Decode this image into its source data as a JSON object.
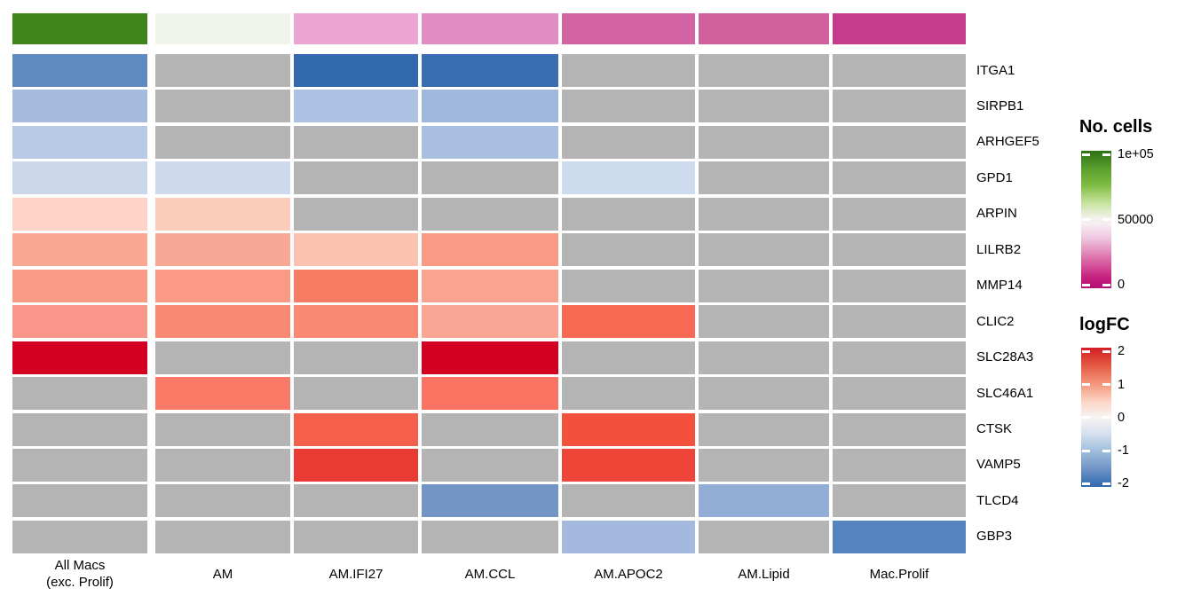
{
  "chart_data": {
    "type": "heatmap",
    "description": "Gene logFC heatmap across macrophage subsets with a 'No. cells' column annotation; gray cells are NA (not significant).",
    "columns": [
      "All Macs\n(exc. Prolif)",
      "AM",
      "AM.IFI27",
      "AM.CCL",
      "AM.APOC2",
      "AM.Lipid",
      "Mac.Prolif"
    ],
    "genes": [
      "ITGA1",
      "SIRPB1",
      "ARHGEF5",
      "GPD1",
      "ARPIN",
      "LILRB2",
      "MMP14",
      "CLIC2",
      "SLC28A3",
      "SLC46A1",
      "CTSK",
      "VAMP5",
      "TLCD4",
      "GBP3"
    ],
    "logFC": [
      [
        -1.1,
        null,
        -1.8,
        -1.7,
        null,
        null,
        null
      ],
      [
        -0.7,
        null,
        -0.6,
        -0.75,
        null,
        null,
        null
      ],
      [
        -0.55,
        null,
        null,
        -0.65,
        null,
        null,
        null
      ],
      [
        -0.4,
        -0.38,
        null,
        null,
        -0.35,
        null,
        null
      ],
      [
        0.33,
        0.4,
        null,
        null,
        null,
        null,
        null
      ],
      [
        0.75,
        0.74,
        0.5,
        0.85,
        null,
        null,
        null
      ],
      [
        0.85,
        0.86,
        1.15,
        0.78,
        null,
        null,
        null
      ],
      [
        0.9,
        1.0,
        1.0,
        0.75,
        1.3,
        null,
        null
      ],
      [
        2.2,
        null,
        null,
        2.2,
        null,
        null,
        null
      ],
      [
        null,
        1.2,
        null,
        1.25,
        null,
        null,
        null
      ],
      [
        null,
        null,
        1.4,
        null,
        1.5,
        null,
        null
      ],
      [
        null,
        null,
        1.75,
        null,
        1.55,
        null,
        null
      ],
      [
        null,
        null,
        null,
        -1.05,
        null,
        -0.8,
        null
      ],
      [
        null,
        null,
        null,
        null,
        -0.7,
        null,
        -1.2
      ]
    ],
    "cell_colors": [
      [
        "#5f8ac0",
        null,
        "#3269ae",
        "#386db1",
        null,
        null,
        null
      ],
      [
        "#a4bbde",
        null,
        "#abc2e3",
        "#9fb8dc",
        null,
        null,
        null
      ],
      [
        "#b8cbe5",
        null,
        null,
        "#a8bfe0",
        null,
        null,
        null
      ],
      [
        "#cad7eb",
        "#ced9ed",
        null,
        null,
        "#ccdcee",
        null,
        null
      ],
      [
        "#fdd3c5",
        "#fcccbb",
        null,
        null,
        null,
        null,
        null
      ],
      [
        "#faa794",
        "#faa896",
        "#fcc2b1",
        "#f99a85",
        null,
        null,
        null
      ],
      [
        "#f99b87",
        "#fa9a85",
        "#f87c63",
        "#faa390",
        null,
        null,
        null
      ],
      [
        "#f9968a",
        "#fa8974",
        "#fa8872",
        "#fba694",
        "#f86953",
        null,
        null
      ],
      [
        "#d40022",
        null,
        null,
        "#d40021",
        null,
        null,
        null
      ],
      [
        null,
        "#fa7866",
        null,
        "#fa7363",
        null,
        null,
        null
      ],
      [
        null,
        null,
        "#f5604b",
        null,
        "#f4513d",
        null,
        null
      ],
      [
        null,
        null,
        "#e93b33",
        null,
        "#ef4438",
        null,
        null
      ],
      [
        null,
        null,
        null,
        "#7295c5",
        null,
        "#92aed7",
        null
      ],
      [
        null,
        null,
        null,
        null,
        "#a3bade",
        null,
        "#5583bf"
      ]
    ],
    "na_color": "#b4b4b4",
    "column_annotation": {
      "label": "No. cells",
      "colors": [
        "#3f851b",
        "#f1f4ea",
        "#eaa5d3",
        "#e18cc4",
        "#d264a4",
        "#d0609c",
        "#c43c8b"
      ],
      "values_estimated": [
        87000,
        52000,
        33000,
        27000,
        17000,
        16000,
        8000
      ]
    },
    "legends": [
      {
        "title": "No. cells",
        "tick_labels": [
          "1e+05",
          "50000",
          "0"
        ],
        "tick_values": [
          100000,
          50000,
          0
        ],
        "range": [
          0,
          100000
        ],
        "colors": [
          "#b30e72",
          "#f7f7f7",
          "#2d7114"
        ]
      },
      {
        "title": "logFC",
        "tick_labels": [
          "2",
          "1",
          "0",
          "-1",
          "-2"
        ],
        "tick_values": [
          2,
          1,
          0,
          -1,
          -2
        ],
        "range": [
          -2,
          2
        ],
        "colors": [
          "#2e67ae",
          "#f7f7f7",
          "#d31e25"
        ]
      }
    ]
  }
}
